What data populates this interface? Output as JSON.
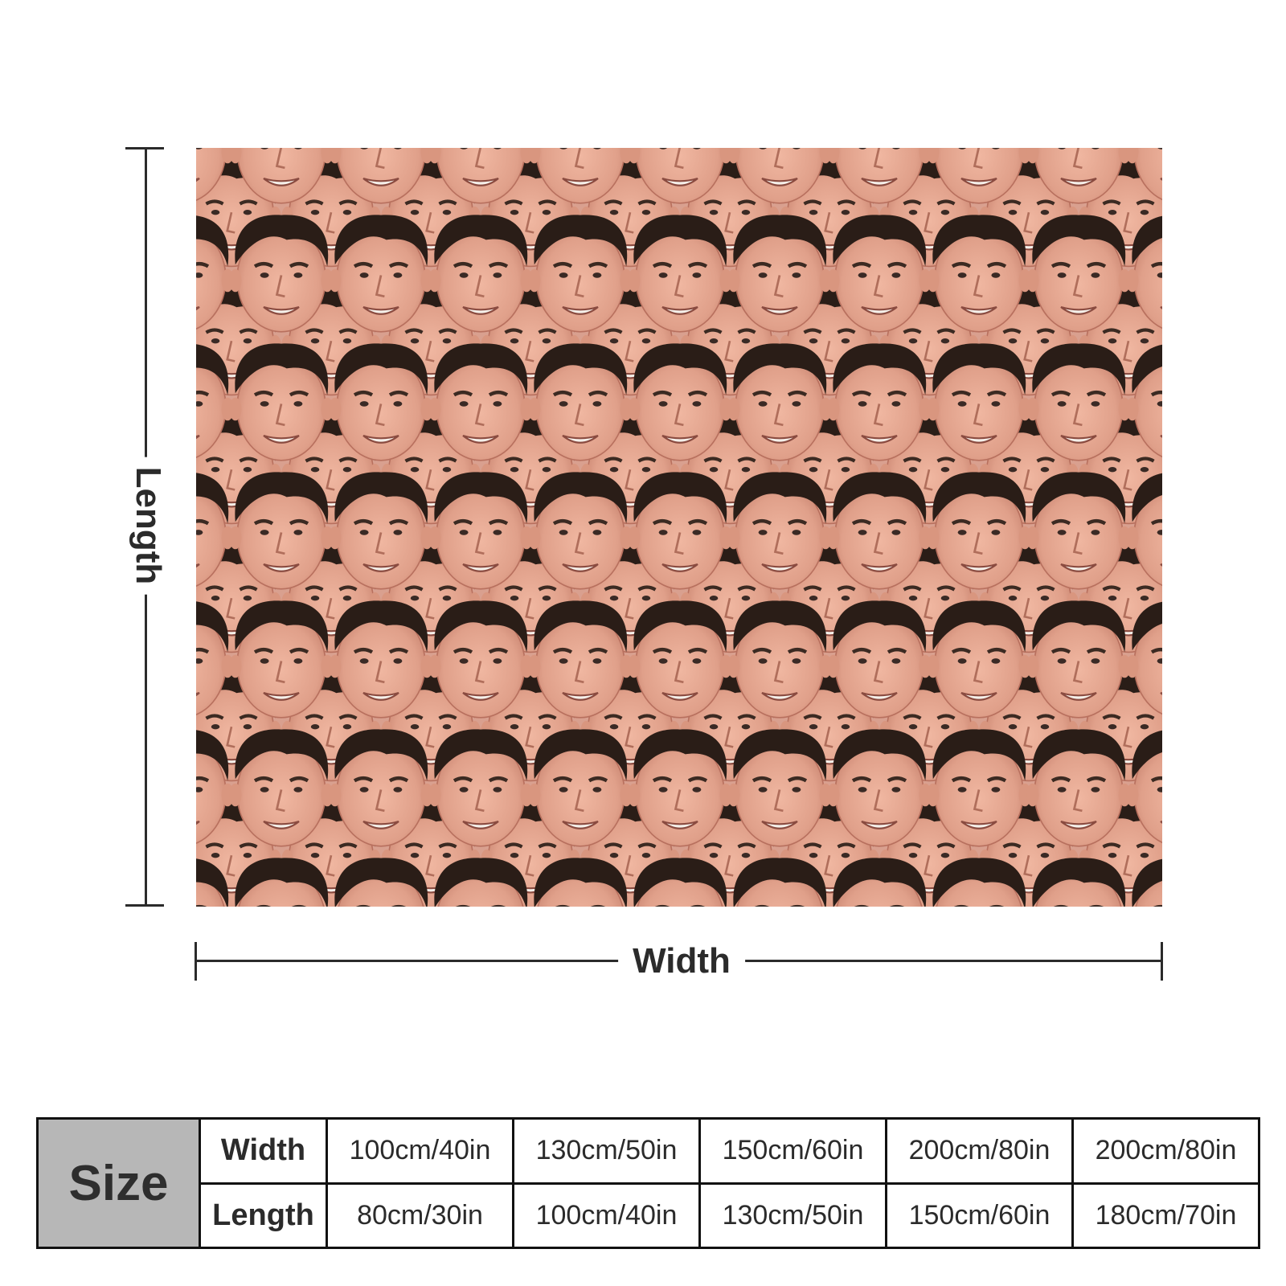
{
  "image": {
    "subject": "face-collage-pattern",
    "colors": {
      "skin": "#e4a48e",
      "skin_shadow": "#c98673",
      "hair": "#2a1d17",
      "background": "#d9a08f",
      "line": "#2b2b2b"
    }
  },
  "dimensions": {
    "length_label": "Length",
    "width_label": "Width"
  },
  "size_table": {
    "title": "Size",
    "rows": [
      {
        "label": "Width",
        "values": [
          "100cm/40in",
          "130cm/50in",
          "150cm/60in",
          "200cm/80in",
          "200cm/80in"
        ]
      },
      {
        "label": "Length",
        "values": [
          "80cm/30in",
          "100cm/40in",
          "130cm/50in",
          "150cm/60in",
          "180cm/70in"
        ]
      }
    ],
    "colors": {
      "title_bg": "#b7b7b7",
      "border": "#111111"
    }
  }
}
